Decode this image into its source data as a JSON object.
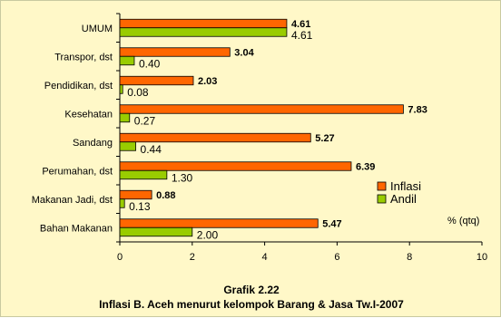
{
  "chart_data": {
    "type": "bar",
    "orientation": "horizontal",
    "categories": [
      "UMUM",
      "Transpor, dst",
      "Pendidikan, dst",
      "Kesehatan",
      "Sandang",
      "Perumahan, dst",
      "Makanan Jadi, dst",
      "Bahan Makanan"
    ],
    "series": [
      {
        "name": "Inflasi",
        "values": [
          4.61,
          3.04,
          2.03,
          7.83,
          5.27,
          6.39,
          0.88,
          5.47
        ],
        "color": "#ff6600"
      },
      {
        "name": "Andil",
        "values": [
          4.61,
          0.4,
          0.08,
          0.27,
          0.44,
          1.3,
          0.13,
          2.0
        ],
        "color": "#99cc00"
      }
    ],
    "value_labels": {
      "Inflasi": [
        "4.61",
        "3.04",
        "2.03",
        "7.83",
        "5.27",
        "6.39",
        "0.88",
        "5.47"
      ],
      "Andil": [
        "4.61",
        "0.40",
        "0.08",
        "0.27",
        "0.44",
        "1.30",
        "0.13",
        "2.00"
      ]
    },
    "xlim": [
      0,
      10
    ],
    "xticks": [
      "0",
      "2",
      "4",
      "6",
      "8",
      "10"
    ],
    "unit_label": "% (qtq)",
    "legend_position": "right",
    "grid": false
  },
  "caption": {
    "title": "Grafik 2.22",
    "subtitle": "Inflasi B. Aceh menurut kelompok Barang & Jasa Tw.I-2007"
  },
  "colors": {
    "background": "#fff8c8",
    "inflasi": "#ff6600",
    "andil": "#99cc00"
  }
}
